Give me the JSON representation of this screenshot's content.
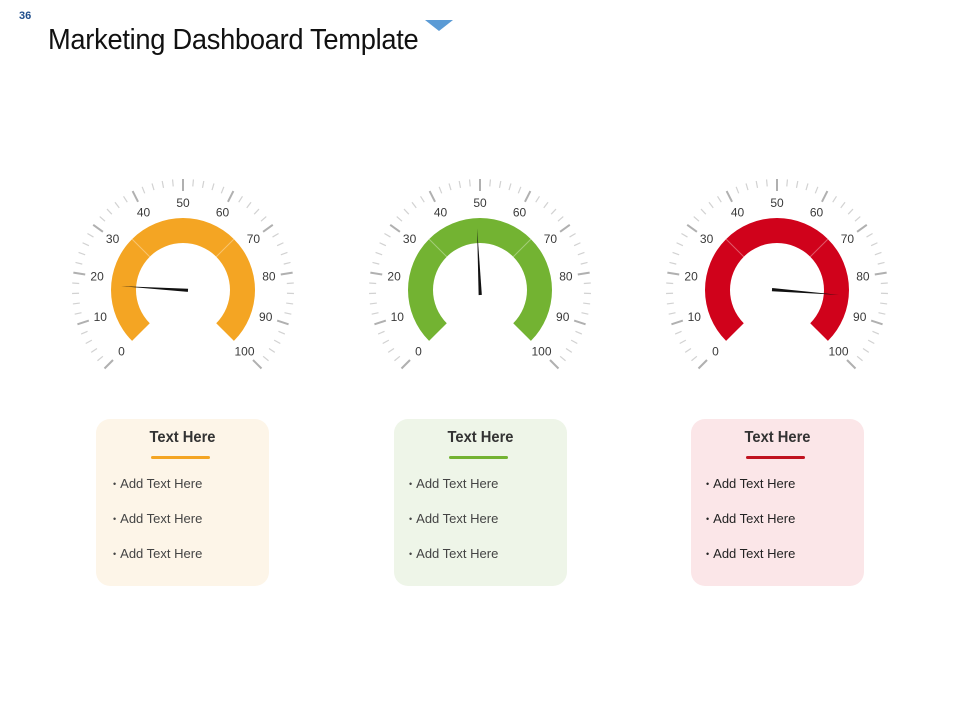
{
  "slide": {
    "number": "36",
    "title": "Marketing Dashboard Template"
  },
  "gauges": [
    {
      "value": 18,
      "color": "#f4a523",
      "band_from": 0,
      "band_to": 100
    },
    {
      "value": 49,
      "color": "#73b332",
      "band_from": 0,
      "band_to": 100
    },
    {
      "value": 85,
      "color": "#d0021b",
      "band_from": 0,
      "band_to": 100
    }
  ],
  "gauge_scale": {
    "min": 0,
    "max": 100,
    "labels": [
      "0",
      "10",
      "20",
      "30",
      "40",
      "50",
      "60",
      "70",
      "80",
      "90",
      "100"
    ]
  },
  "cards": [
    {
      "title": "Text Here",
      "accent": "#f4a523",
      "background": "#fdf5e8",
      "items": [
        "Add Text Here",
        "Add Text Here",
        "Add Text Here"
      ]
    },
    {
      "title": "Text Here",
      "accent": "#73b332",
      "background": "#eef5e8",
      "items": [
        "Add Text Here",
        "Add Text Here",
        "Add Text Here"
      ]
    },
    {
      "title": "Text Here",
      "accent": "#c0121f",
      "background": "#fbe6e8",
      "items": [
        "Add Text Here",
        "Add Text Here",
        "Add Text Here"
      ]
    }
  ]
}
